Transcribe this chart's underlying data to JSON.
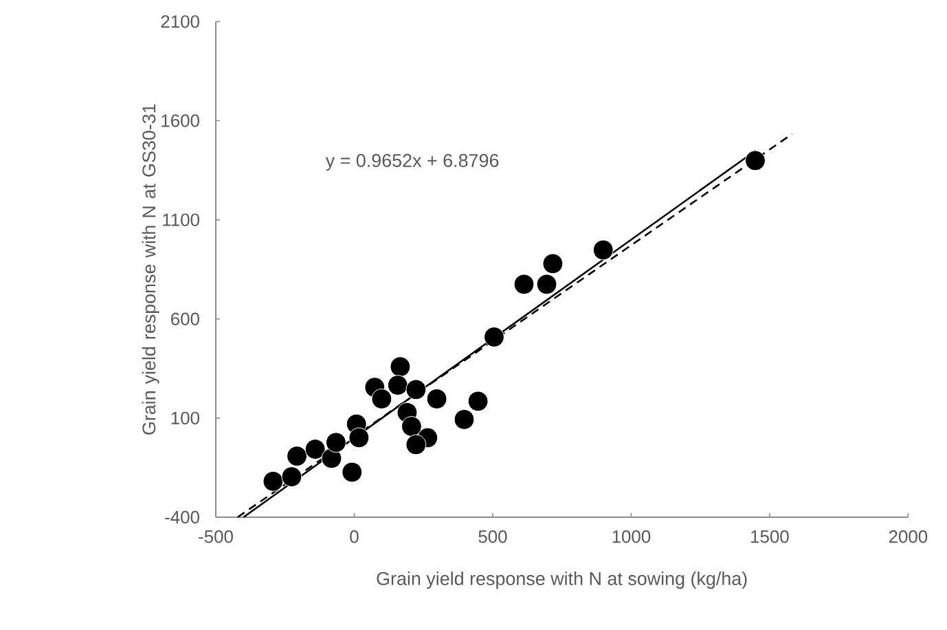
{
  "chart_data": {
    "type": "scatter",
    "xlabel": "Grain yield response with N at sowing (kg/ha)",
    "ylabel": "Grain yield response  with N at GS30-31",
    "annotations": [
      "y = 0.9652x + 6.8796"
    ],
    "xlim": [
      -500,
      2000
    ],
    "xticks": [
      -500,
      0,
      500,
      1000,
      1500,
      2000
    ],
    "ylim": [
      -400,
      2100
    ],
    "yticks": [
      -400,
      100,
      600,
      1100,
      1600,
      2100
    ],
    "grid": false,
    "series": [
      {
        "type": "line",
        "color": "#000000",
        "line_style": "solid",
        "marker": "none",
        "x": [
          -400,
          1450
        ],
        "values": [
          -400,
          1450
        ]
      },
      {
        "type": "line",
        "color": "#000000",
        "line_style": "dashed",
        "marker": "none",
        "x": [
          -421,
          1581
        ],
        "values": [
          -400,
          1533
        ]
      },
      {
        "color": "#000000",
        "marker": "circle",
        "x": [
          -293,
          -226,
          -207,
          -141,
          -82,
          -66,
          8,
          17,
          -8,
          74,
          99,
          166,
          157,
          223,
          191,
          207,
          265,
          223,
          298,
          397,
          447,
          505,
          613,
          695,
          717,
          899,
          1448
        ],
        "values": [
          -219,
          -196,
          -92,
          -57,
          -103,
          -23,
          70,
          1,
          -173,
          255,
          197,
          359,
          266,
          244,
          128,
          58,
          1,
          -34,
          197,
          93,
          185,
          509,
          775,
          775,
          879,
          948,
          1399
        ]
      }
    ]
  }
}
